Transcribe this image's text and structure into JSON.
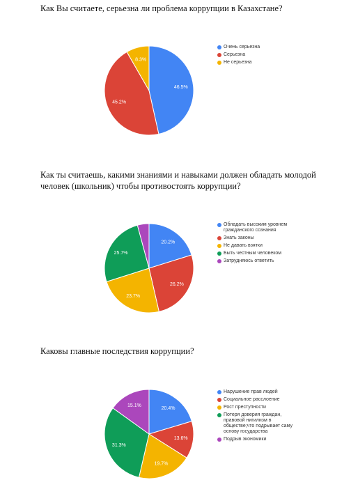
{
  "chart_data": [
    {
      "type": "pie",
      "title": "Как Вы считаете, серьезна ли проблема коррупции в Казахстане?",
      "categories": [
        "Очень серьезна",
        "Серьезна",
        "Не серьезна"
      ],
      "values": [
        46.5,
        45.2,
        8.3
      ],
      "value_labels": [
        "46.5%",
        "45.2%",
        "8.3%"
      ],
      "colors": [
        "#4285f4",
        "#db4437",
        "#f4b400"
      ]
    },
    {
      "type": "pie",
      "title": "Как ты считаешь, какими знаниями и навыками должен обладать молодой человек (школьник) чтобы противостоять коррупции?",
      "categories": [
        "Обладать высоким уровнем гражданского сознания",
        "Знать законы",
        "Не давать взятки",
        "Быть честным человеком",
        "Затрудняюсь ответить"
      ],
      "values": [
        20.2,
        26.2,
        23.7,
        25.7,
        4.2
      ],
      "value_labels": [
        "20.2%",
        "26.2%",
        "23.7%",
        "25.7%",
        null
      ],
      "colors": [
        "#4285f4",
        "#db4437",
        "#f4b400",
        "#0f9d58",
        "#ab47bc"
      ]
    },
    {
      "type": "pie",
      "title": "Каковы главные последствия коррупции?",
      "categories": [
        "Нарушение прав людей",
        "Социальное расслоение",
        "Рост преступности",
        "Потеря доверия граждан, правовой нигилизм в обществе;что подрывает саму основу государства",
        "Подрыв экономики"
      ],
      "values": [
        20.4,
        13.6,
        19.7,
        31.3,
        15.1
      ],
      "value_labels": [
        "20.4%",
        "13.6%",
        "19.7%",
        "31.3%",
        "15.1%"
      ],
      "colors": [
        "#4285f4",
        "#db4437",
        "#f4b400",
        "#0f9d58",
        "#ab47bc"
      ]
    }
  ]
}
